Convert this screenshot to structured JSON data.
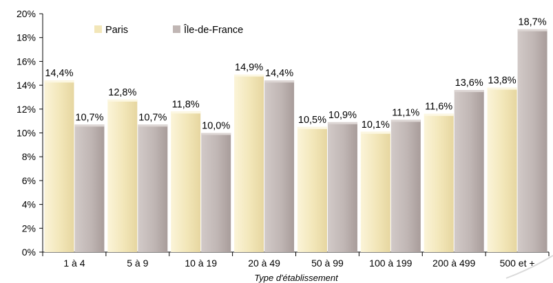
{
  "chart_data": {
    "type": "bar",
    "title": "",
    "xlabel": "Type d'établissement",
    "ylabel": "",
    "ylim": [
      0,
      20
    ],
    "ytick_step": 2,
    "ytick_format": "percent",
    "grid": false,
    "legend_position": "top-left",
    "categories": [
      "1 à 4",
      "5 à 9",
      "10 à 19",
      "20 à 49",
      "50 à 99",
      "100 à 199",
      "200 à 499",
      "500 et +"
    ],
    "series": [
      {
        "name": "Paris",
        "color": "#f2e6b8",
        "values": [
          14.4,
          12.8,
          11.8,
          14.9,
          10.5,
          10.1,
          11.6,
          13.8
        ],
        "labels": [
          "14,4%",
          "12,8%",
          "11,8%",
          "14,9%",
          "10,5%",
          "10,1%",
          "11,6%",
          "13,8%"
        ]
      },
      {
        "name": "Île-de-France",
        "color": "#c0b6b4",
        "values": [
          10.7,
          10.7,
          10.0,
          14.4,
          10.9,
          11.1,
          13.6,
          18.7
        ],
        "labels": [
          "10,7%",
          "10,7%",
          "10,0%",
          "14,4%",
          "10,9%",
          "11,1%",
          "13,6%",
          "18,7%"
        ]
      }
    ]
  }
}
